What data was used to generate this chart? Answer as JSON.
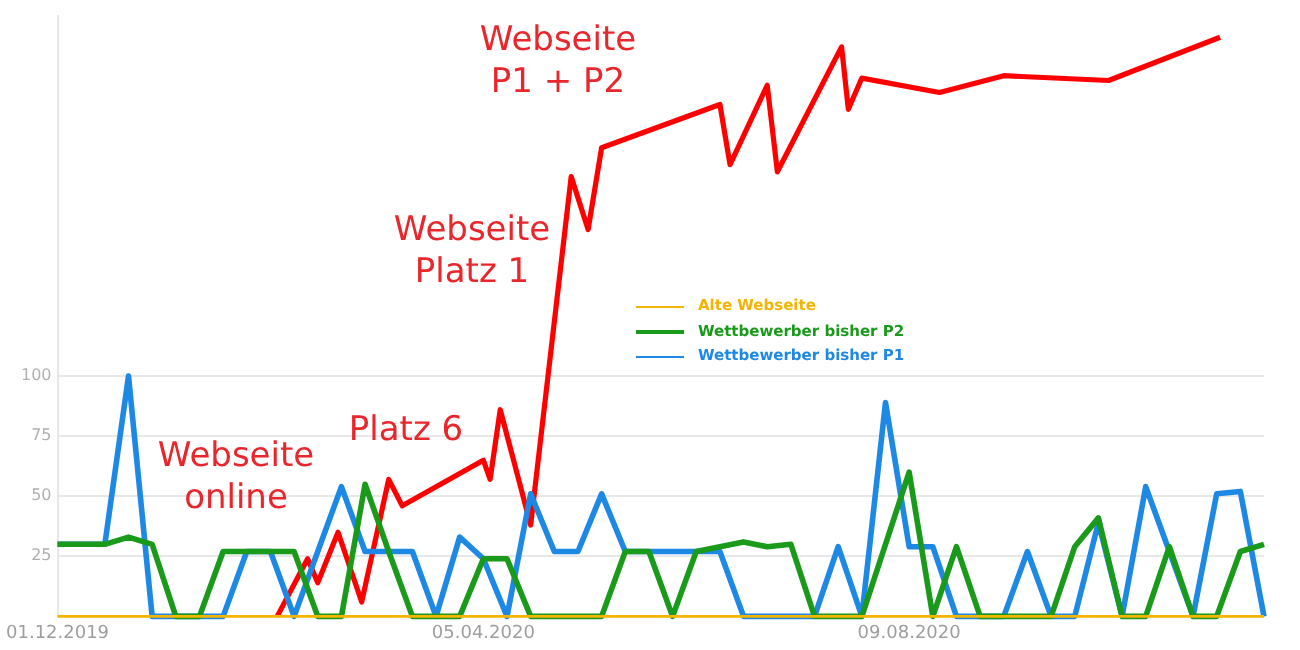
{
  "chart_data": {
    "type": "line",
    "x": [
      "2019-12-01",
      "2019-12-08",
      "2019-12-15",
      "2019-12-22",
      "2019-12-29",
      "2020-01-05",
      "2020-01-12",
      "2020-01-19",
      "2020-01-26",
      "2020-02-02",
      "2020-02-09",
      "2020-02-16",
      "2020-02-23",
      "2020-03-01",
      "2020-03-08",
      "2020-03-15",
      "2020-03-22",
      "2020-03-29",
      "2020-04-05",
      "2020-04-12",
      "2020-04-19",
      "2020-04-26",
      "2020-05-03",
      "2020-05-10",
      "2020-05-17",
      "2020-05-24",
      "2020-05-31",
      "2020-06-07",
      "2020-06-14",
      "2020-06-21",
      "2020-06-28",
      "2020-07-05",
      "2020-07-12",
      "2020-07-19",
      "2020-07-26",
      "2020-08-02",
      "2020-08-09",
      "2020-08-16",
      "2020-08-23",
      "2020-08-30",
      "2020-09-06",
      "2020-09-13",
      "2020-09-20",
      "2020-09-27",
      "2020-10-04",
      "2020-10-11",
      "2020-10-18",
      "2020-10-25",
      "2020-11-01",
      "2020-11-08",
      "2020-11-15",
      "2020-11-22"
    ],
    "series": [
      {
        "name": "Alte Webseite",
        "color": "#f4b400",
        "values": [
          0,
          0,
          0,
          0,
          0,
          0,
          0,
          0,
          0,
          0,
          0,
          0,
          0,
          0,
          0,
          0,
          0,
          0,
          0,
          0,
          0,
          0,
          0,
          0,
          0,
          0,
          0,
          0,
          0,
          0,
          0,
          0,
          0,
          0,
          0,
          0,
          0,
          0,
          0,
          0,
          0,
          0,
          0,
          0,
          0,
          0,
          0,
          0,
          0,
          0,
          0,
          0
        ]
      },
      {
        "name": "Wettbewerber bisher P2",
        "color": "#1a9a1a",
        "values": [
          30,
          30,
          30,
          33,
          30,
          0,
          0,
          27,
          27,
          27,
          27,
          0,
          0,
          55,
          27,
          0,
          0,
          0,
          24,
          24,
          0,
          0,
          0,
          0,
          27,
          27,
          0,
          27,
          29,
          31,
          29,
          30,
          0,
          0,
          0,
          30,
          60,
          0,
          29,
          0,
          0,
          0,
          0,
          29,
          41,
          0,
          0,
          29,
          0,
          0,
          27,
          30
        ]
      },
      {
        "name": "Wettbewerber bisher P1",
        "color": "#1e88e5",
        "values": [
          30,
          30,
          30,
          100,
          0,
          0,
          0,
          0,
          27,
          27,
          0,
          27,
          54,
          27,
          27,
          27,
          0,
          33,
          24,
          0,
          51,
          27,
          27,
          51,
          27,
          27,
          27,
          27,
          27,
          0,
          0,
          0,
          0,
          29,
          0,
          89,
          29,
          29,
          0,
          0,
          0,
          27,
          0,
          0,
          39,
          0,
          54,
          27,
          0,
          51,
          52,
          0
        ]
      },
      {
        "color": "#ff0000",
        "x": [
          "2020-02-04",
          "2020-02-13",
          "2020-02-16",
          "2020-02-22",
          "2020-02-29",
          "2020-03-08",
          "2020-03-12",
          "2020-04-05",
          "2020-04-07",
          "2020-04-10",
          "2020-04-19",
          "2020-05-01",
          "2020-05-06",
          "2020-05-10",
          "2020-06-14",
          "2020-06-17",
          "2020-06-28",
          "2020-07-01",
          "2020-07-20",
          "2020-07-22",
          "2020-07-26",
          "2020-08-18",
          "2020-09-06",
          "2020-10-07",
          "2020-11-09"
        ],
        "values": [
          0,
          24,
          14,
          35,
          6,
          57,
          46,
          65,
          57,
          86,
          38,
          183,
          161,
          195,
          213,
          188,
          221,
          185,
          237,
          211,
          224,
          218,
          225,
          223,
          241
        ]
      }
    ],
    "xlim": [
      "2019-12-01",
      "2020-11-22"
    ],
    "xticks": [
      {
        "value": "2019-12-01",
        "label": "01.12.2019"
      },
      {
        "value": "2020-04-05",
        "label": "05.04.2020"
      },
      {
        "value": "2020-08-09",
        "label": "09.08.2020"
      }
    ],
    "ylim": [
      0,
      250
    ],
    "yticks": [
      25,
      50,
      75,
      100
    ],
    "grid": "y",
    "legend": "center",
    "marker": "none",
    "line_style": "solid",
    "annotations": [
      "Webseite online",
      "Platz 6",
      "Webseite Platz 1",
      "Webseite P1 + P2"
    ]
  }
}
